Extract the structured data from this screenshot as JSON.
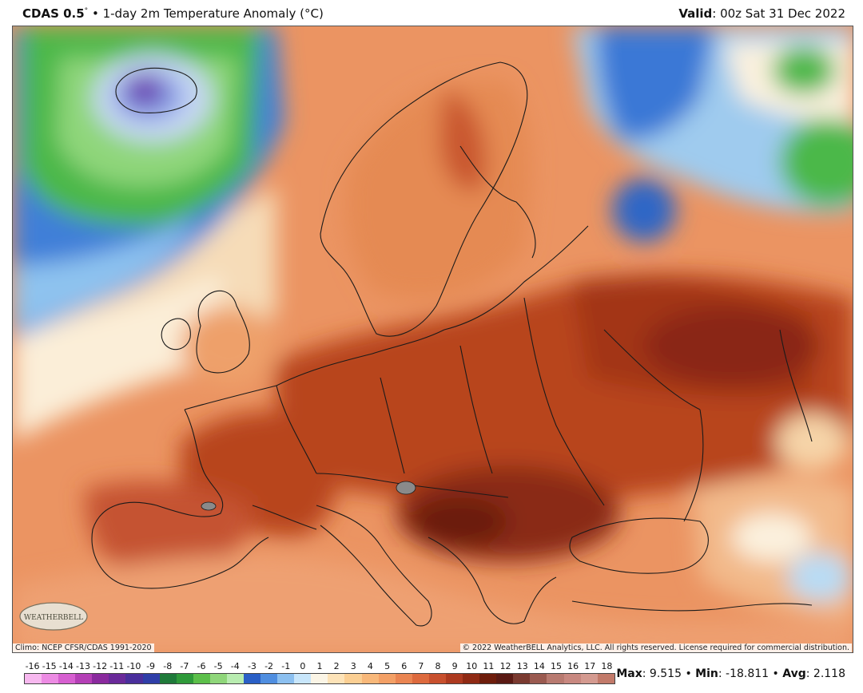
{
  "header": {
    "model": "CDAS 0.5",
    "degree_mark": "°",
    "separator": "•",
    "product": "1-day 2m Temperature Anomaly (°C)",
    "valid_label": "Valid",
    "valid_value": ": 00z Sat 31 Dec 2022"
  },
  "map": {
    "region": "Europe",
    "logo_text": "WEATHERBELL",
    "climo_credit": "Climo: NCEP CFSR/CDAS 1991-2020",
    "copyright": "© 2022 WeatherBELL Analytics, LLC. All rights reserved. License required for commercial distribution."
  },
  "colorbar": {
    "labels": [
      "-16",
      "-15",
      "-14",
      "-13",
      "-12",
      "-11",
      "-10",
      "-9",
      "-8",
      "-7",
      "-6",
      "-5",
      "-4",
      "-3",
      "-2",
      "-1",
      "0",
      "1",
      "2",
      "3",
      "4",
      "5",
      "6",
      "7",
      "8",
      "9",
      "10",
      "11",
      "12",
      "13",
      "14",
      "15",
      "16",
      "17",
      "18"
    ],
    "colors": [
      "#f7b8ef",
      "#ec8be3",
      "#d65fd0",
      "#b43fb6",
      "#8a2a9e",
      "#6a2a9a",
      "#4a2f9c",
      "#2f3ea8",
      "#1f7a3a",
      "#2f9a3a",
      "#5cbf4a",
      "#8fd67a",
      "#b8ecb0",
      "#2a5fc6",
      "#4f8ee0",
      "#8cc0f0",
      "#c8e6fb",
      "#fbf5e6",
      "#fde3b8",
      "#fbcf93",
      "#f8b87a",
      "#f3a066",
      "#ea8552",
      "#dd6a3e",
      "#c8502e",
      "#ad3a20",
      "#8f2a14",
      "#6e1d0c",
      "#5a1a14",
      "#7a3a30",
      "#9a5a50",
      "#b87a70",
      "#c88880",
      "#d49a90",
      "#c27a6a"
    ]
  },
  "stats": {
    "max_label": "Max",
    "max_value": ": 9.515",
    "min_label": "Min",
    "min_value": ": -18.811",
    "avg_label": "Avg",
    "avg_value": ": 2.118",
    "sep": " • "
  },
  "colors": {
    "deep_anomaly": "#8a2a14",
    "warm": "#e8864e",
    "light": "#f6c89a",
    "cold_blue": "#3a78d6",
    "cold_green": "#4db84a",
    "cold_purple": "#7a3ab8",
    "border": "#1a1a1a"
  }
}
